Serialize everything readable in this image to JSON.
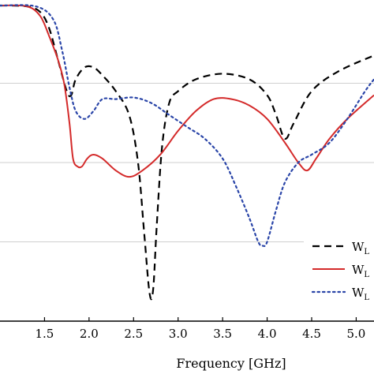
{
  "chart_data": {
    "type": "line",
    "xlabel": "Frequency [GHz]",
    "ylabel": "",
    "xlim": [
      1.0,
      5.2
    ],
    "ylim": [
      -40,
      0
    ],
    "x_ticks": [
      "1.5",
      "2.0",
      "2.5",
      "3.0",
      "3.5",
      "4.0",
      "4.5",
      "5.0"
    ],
    "x_tick_values": [
      1.5,
      2.0,
      2.5,
      3.0,
      3.5,
      4.0,
      4.5,
      5.0
    ],
    "y_gridlines": [
      -10,
      -20,
      -30
    ],
    "legend_position": "bottom-right",
    "series": [
      {
        "name": "W",
        "subscript": "L",
        "color": "#000000",
        "dash": "dashed",
        "x": [
          1.0,
          1.3,
          1.45,
          1.55,
          1.65,
          1.75,
          1.8,
          1.85,
          1.95,
          2.05,
          2.15,
          2.3,
          2.45,
          2.55,
          2.62,
          2.68,
          2.72,
          2.76,
          2.82,
          2.9,
          3.0,
          3.2,
          3.5,
          3.8,
          4.0,
          4.1,
          4.2,
          4.3,
          4.5,
          4.8,
          5.2
        ],
        "y": [
          -0.2,
          -0.3,
          -1.0,
          -3.0,
          -7.0,
          -11.0,
          -11.5,
          -9.5,
          -8.0,
          -8.0,
          -9.0,
          -11.0,
          -14.0,
          -20.0,
          -29.0,
          -36.5,
          -36.0,
          -28.0,
          -18.0,
          -12.5,
          -11.0,
          -9.5,
          -8.8,
          -9.5,
          -11.5,
          -14.0,
          -17.0,
          -15.0,
          -11.0,
          -8.5,
          -6.5
        ]
      },
      {
        "name": "W",
        "subscript": "L",
        "color": "#d42a2a",
        "dash": "solid",
        "x": [
          1.0,
          1.3,
          1.45,
          1.55,
          1.65,
          1.72,
          1.78,
          1.82,
          1.87,
          1.92,
          1.98,
          2.05,
          2.15,
          2.3,
          2.45,
          2.6,
          2.8,
          3.0,
          3.2,
          3.4,
          3.6,
          3.8,
          4.0,
          4.2,
          4.35,
          4.45,
          4.55,
          4.7,
          4.9,
          5.2
        ],
        "y": [
          -0.2,
          -0.3,
          -1.5,
          -4.0,
          -7.0,
          -10.0,
          -15.0,
          -19.5,
          -20.5,
          -20.5,
          -19.5,
          -19.0,
          -19.5,
          -21.0,
          -21.8,
          -21.0,
          -19.0,
          -16.0,
          -13.5,
          -12.0,
          -12.0,
          -12.8,
          -14.5,
          -17.5,
          -20.0,
          -21.0,
          -19.5,
          -17.0,
          -14.5,
          -11.5
        ]
      },
      {
        "name": "W",
        "subscript": "L",
        "color": "#2a45a8",
        "dash": "dotted",
        "x": [
          1.0,
          1.4,
          1.6,
          1.7,
          1.78,
          1.85,
          1.95,
          2.05,
          2.15,
          2.3,
          2.5,
          2.7,
          2.9,
          3.1,
          3.3,
          3.5,
          3.65,
          3.8,
          3.9,
          3.95,
          4.0,
          4.1,
          4.2,
          4.35,
          4.5,
          4.7,
          4.9,
          5.1,
          5.2
        ],
        "y": [
          -0.2,
          -0.3,
          -2.0,
          -6.0,
          -10.5,
          -13.5,
          -14.5,
          -13.5,
          -12.0,
          -12.0,
          -11.8,
          -12.5,
          -14.0,
          -15.5,
          -17.0,
          -19.5,
          -23.0,
          -27.0,
          -30.0,
          -30.5,
          -30.0,
          -26.0,
          -22.5,
          -20.0,
          -19.0,
          -17.5,
          -14.5,
          -11.0,
          -9.5
        ]
      }
    ]
  }
}
